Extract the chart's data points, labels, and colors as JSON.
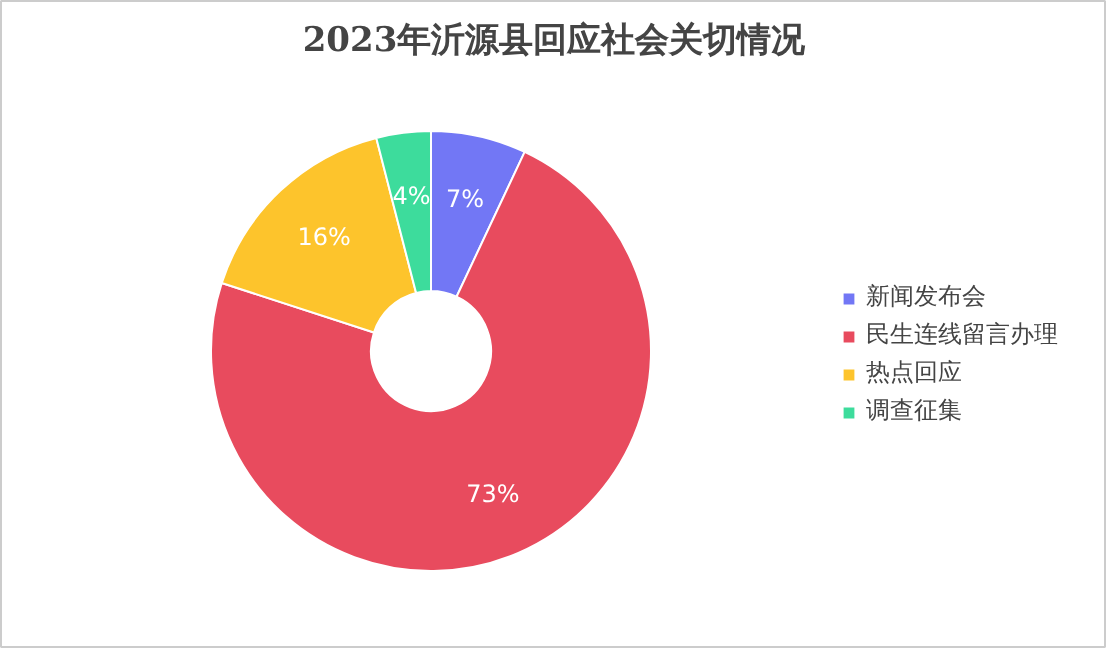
{
  "chart_data": {
    "type": "donut",
    "title": "2023年沂源县回应社会关切情况",
    "categories": [
      "新闻发布会",
      "民生连线留言办理",
      "热点回应",
      "调查征集"
    ],
    "values": [
      7,
      73,
      16,
      4
    ],
    "colors": [
      "#7277f5",
      "#e84b5e",
      "#fdc42c",
      "#3ddc9c"
    ],
    "value_labels": [
      "7%",
      "73%",
      "16%",
      "4%"
    ],
    "legend": "right"
  }
}
